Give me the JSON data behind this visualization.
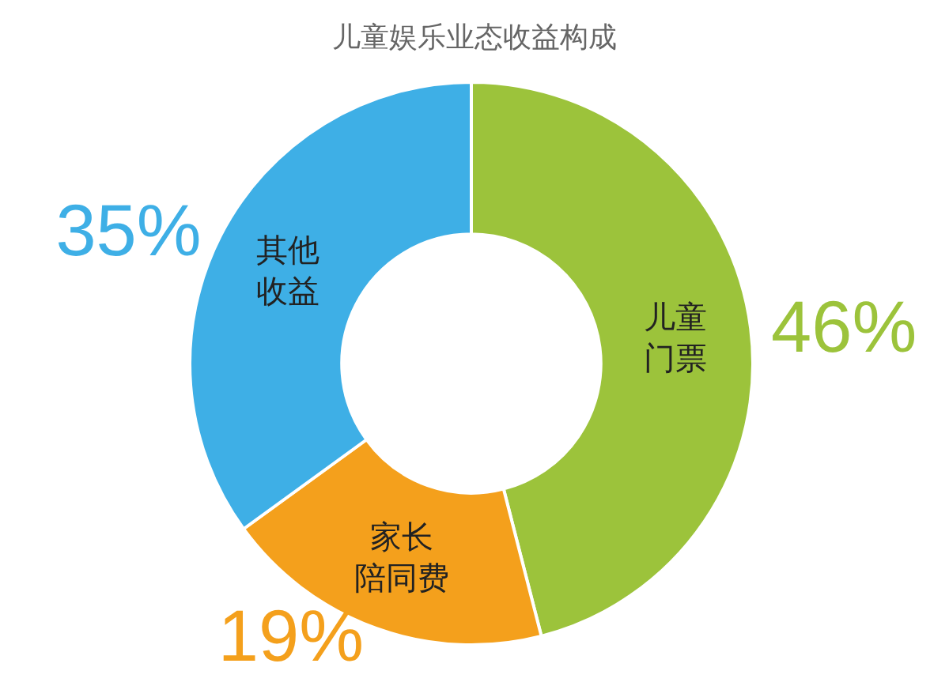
{
  "chart_data": {
    "type": "donut",
    "title": "儿童娱乐业态收益构成",
    "categories": [
      "儿童门票",
      "家长陪同费",
      "其他收益"
    ],
    "values": [
      46,
      19,
      35
    ],
    "value_labels": [
      "46%",
      "19%",
      "35%"
    ],
    "colors": [
      "#9cc33b",
      "#f4a01c",
      "#3eafe6"
    ]
  }
}
